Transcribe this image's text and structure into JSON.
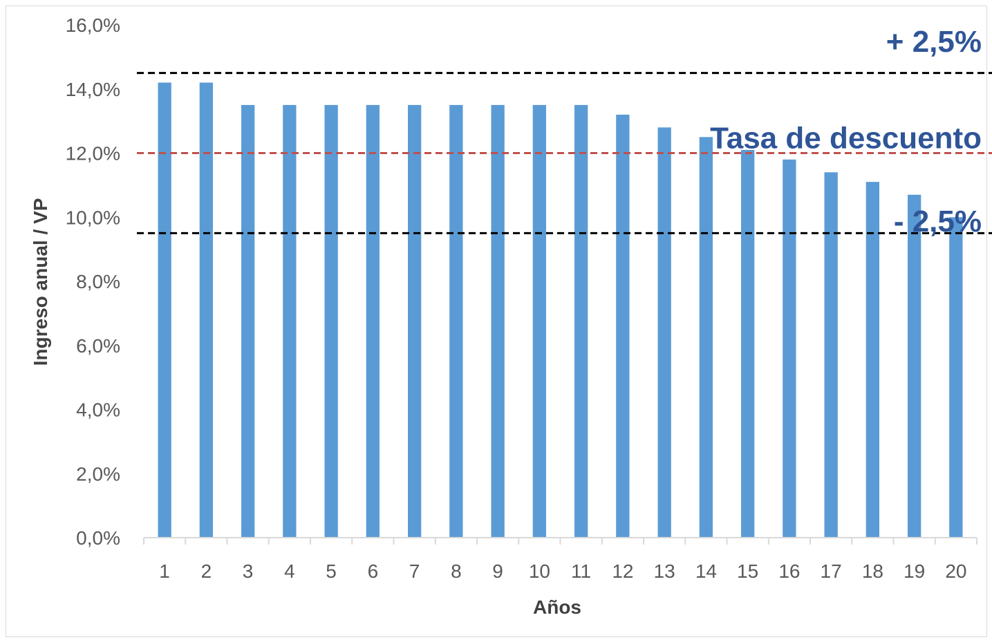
{
  "chart_data": {
    "type": "bar",
    "categories": [
      "1",
      "2",
      "3",
      "4",
      "5",
      "6",
      "7",
      "8",
      "9",
      "10",
      "11",
      "12",
      "13",
      "14",
      "15",
      "16",
      "17",
      "18",
      "19",
      "20"
    ],
    "series": [
      {
        "values": [
          14.2,
          14.2,
          13.5,
          13.5,
          13.5,
          13.5,
          13.5,
          13.5,
          13.5,
          13.5,
          13.5,
          13.2,
          12.8,
          12.5,
          12.1,
          11.8,
          11.4,
          11.1,
          10.7,
          10.0
        ],
        "color": "#5b9bd5"
      }
    ],
    "xlabel": "Años",
    "ylabel": "Ingreso anual / VP",
    "ylim": [
      0,
      16
    ],
    "yticks": [
      0,
      2,
      4,
      6,
      8,
      10,
      12,
      14,
      16
    ],
    "ytick_labels": [
      "0,0%",
      "2,0%",
      "4,0%",
      "6,0%",
      "8,0%",
      "10,0%",
      "12,0%",
      "14,0%",
      "16,0%"
    ],
    "grid": false,
    "reference_lines": [
      {
        "value": 14.5,
        "style": "dashed",
        "color": "#000000"
      },
      {
        "value": 12.0,
        "style": "dashed",
        "color": "#c0504d"
      },
      {
        "value": 9.5,
        "style": "dashed",
        "color": "#000000"
      }
    ],
    "annotations": [
      {
        "text": "+ 2,5%",
        "y": 15.5
      },
      {
        "text": "Tasa de descuento",
        "y": 12.5
      },
      {
        "text": "- 2,5%",
        "y": 9.9
      }
    ],
    "annotation_color": "#2f5597",
    "axis_color": "#d9d9d9"
  }
}
